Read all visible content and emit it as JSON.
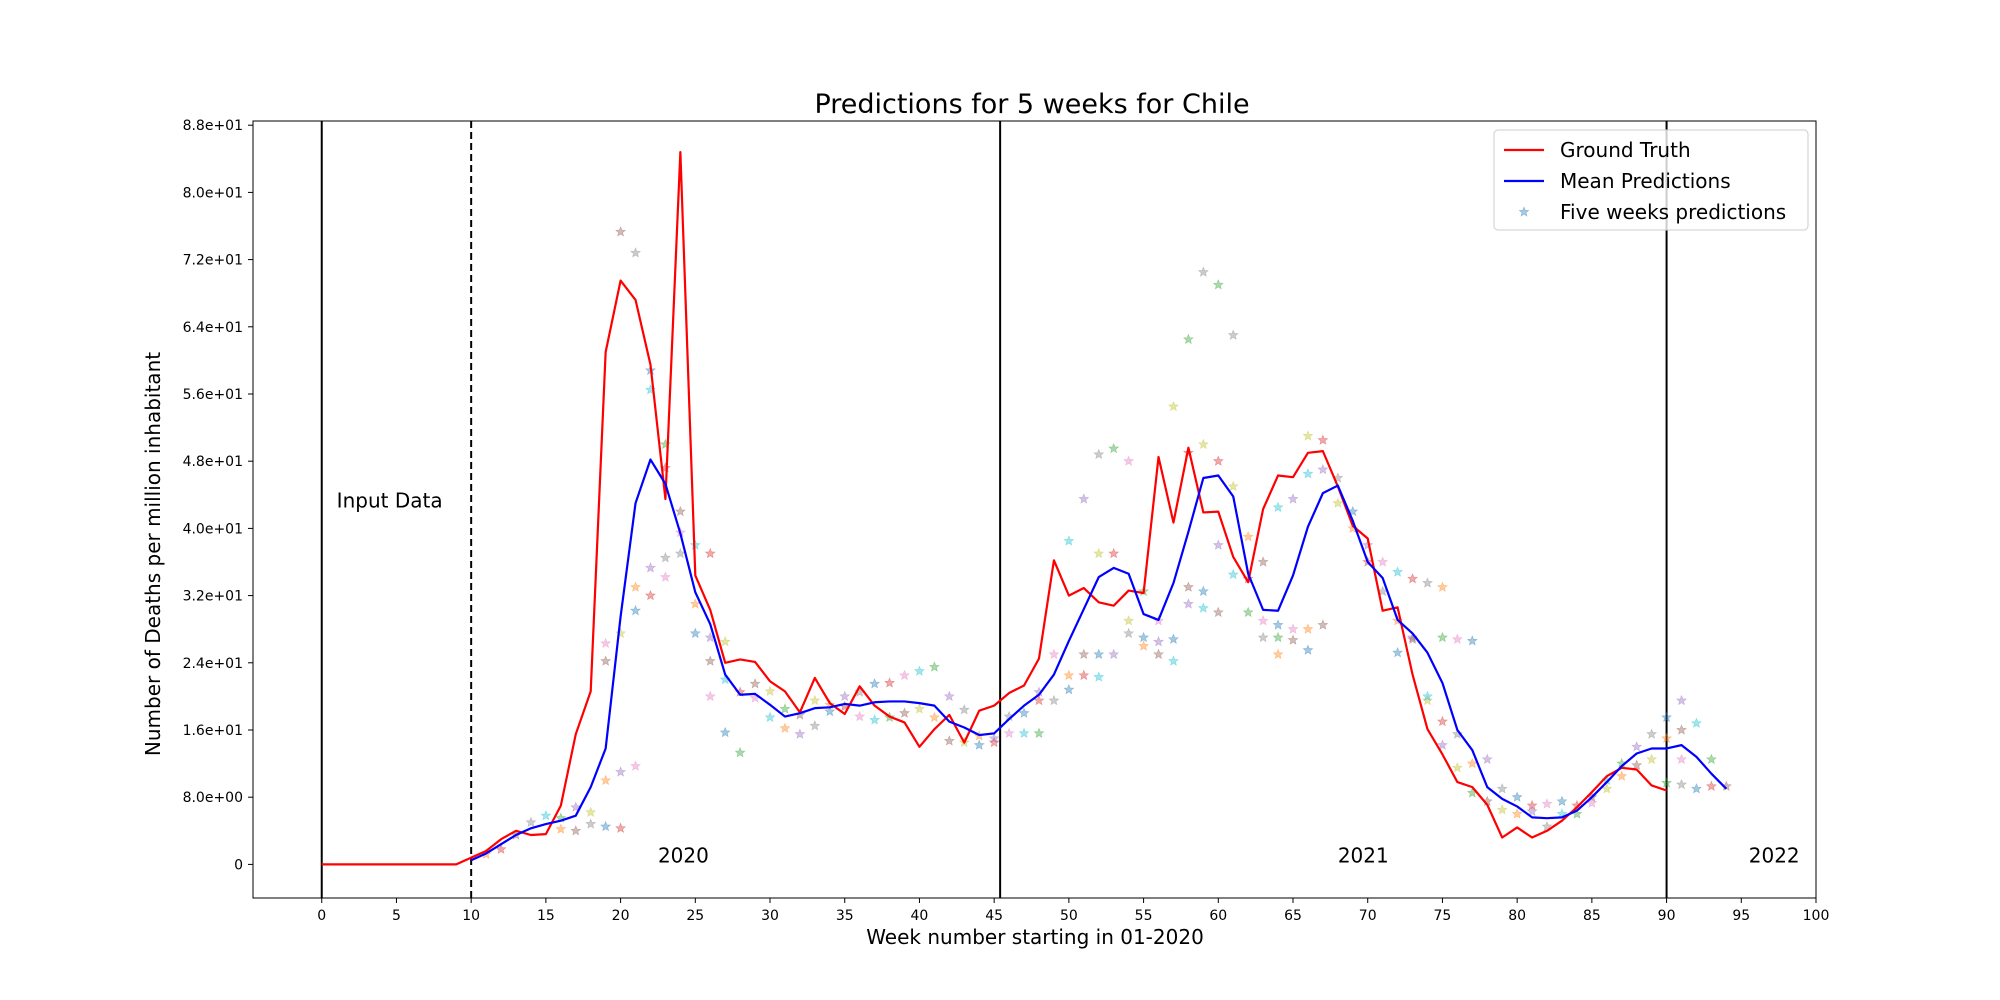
{
  "chart_data": {
    "type": "line",
    "title": "Predictions for 5 weeks for Chile",
    "xlabel": "Week number starting in 01-2020",
    "ylabel": "Number of Deaths per million inhabitant",
    "xlim": [
      -4.6,
      100
    ],
    "ylim": [
      -4.0,
      88.5
    ],
    "x_ticks": [
      0,
      5,
      10,
      15,
      20,
      25,
      30,
      35,
      40,
      45,
      50,
      55,
      60,
      65,
      70,
      75,
      80,
      85,
      90,
      95,
      100
    ],
    "y_ticks": [
      0,
      8,
      16,
      24,
      32,
      40,
      48,
      56,
      64,
      72,
      80,
      88
    ],
    "y_tick_labels": [
      "0",
      "8.0e+00",
      "1.6e+01",
      "2.4e+01",
      "3.2e+01",
      "4.0e+01",
      "4.8e+01",
      "5.6e+01",
      "6.4e+01",
      "7.2e+01",
      "8.0e+01",
      "8.8e+01"
    ],
    "grid": false,
    "legend_position": "top-right",
    "legend": [
      "Ground Truth",
      "Mean Predictions",
      "Five weeks predictions"
    ],
    "vertical_lines": [
      {
        "x": 0,
        "style": "solid"
      },
      {
        "x": 10,
        "style": "dashed"
      },
      {
        "x": 45.4,
        "style": "solid"
      },
      {
        "x": 90,
        "style": "solid"
      }
    ],
    "annotations": [
      {
        "text": "Input Data",
        "x": 1,
        "y": 42.5
      },
      {
        "text": "2020",
        "x": 22.5,
        "y": 0.2
      },
      {
        "text": "2021",
        "x": 68,
        "y": 0.2
      },
      {
        "text": "2022",
        "x": 95.5,
        "y": 0.2
      }
    ],
    "series": [
      {
        "name": "Ground Truth",
        "color": "#ff0000",
        "x": [
          0,
          1,
          2,
          3,
          4,
          5,
          6,
          7,
          8,
          9,
          10,
          11,
          12,
          13,
          14,
          15,
          16,
          17,
          18,
          19,
          20,
          21,
          22,
          23,
          24,
          25,
          26,
          27,
          28,
          29,
          30,
          31,
          32,
          33,
          34,
          35,
          36,
          37,
          38,
          39,
          40,
          41,
          42,
          43,
          44,
          45,
          46,
          47,
          48,
          49,
          50,
          51,
          52,
          53,
          54,
          55,
          56,
          57,
          58,
          59,
          60,
          61,
          62,
          63,
          64,
          65,
          66,
          67,
          68,
          69,
          70,
          71,
          72,
          73,
          74,
          75,
          76,
          77,
          78,
          79,
          80,
          81,
          82,
          83,
          84,
          85,
          86,
          87,
          88,
          89,
          90
        ],
        "values": [
          0,
          0,
          0,
          0,
          0,
          0,
          0,
          0,
          0,
          0,
          0.8,
          1.6,
          3.0,
          4.0,
          3.5,
          3.6,
          7.0,
          15.5,
          20.6,
          61,
          69.5,
          67.2,
          59.5,
          43.5,
          84.8,
          34.4,
          30.3,
          24.0,
          24.4,
          24.1,
          21.8,
          20.6,
          18.1,
          22.2,
          19.2,
          17.9,
          21.2,
          18.9,
          17.6,
          16.9,
          14.0,
          16.1,
          17.8,
          14.5,
          18.3,
          18.9,
          20.4,
          21.3,
          24.5,
          36.2,
          32.0,
          32.9,
          31.2,
          30.8,
          32.6,
          32.3,
          48.5,
          40.7,
          49.6,
          41.9,
          42.0,
          36.6,
          33.6,
          42.3,
          46.3,
          46.1,
          49.0,
          49.2,
          45.0,
          40.3,
          38.8,
          30.2,
          30.6,
          22.6,
          16.1,
          13.1,
          9.8,
          9.2,
          7.1,
          3.2,
          4.4,
          3.2,
          4.0,
          5.2,
          6.8,
          8.6,
          10.5,
          11.5,
          11.3,
          9.4,
          8.8
        ]
      },
      {
        "name": "Mean Predictions",
        "color": "#0000ff",
        "x": [
          10,
          11,
          12,
          13,
          14,
          15,
          16,
          17,
          18,
          19,
          20,
          21,
          22,
          23,
          24,
          25,
          26,
          27,
          28,
          29,
          30,
          31,
          32,
          33,
          34,
          35,
          36,
          37,
          38,
          39,
          40,
          41,
          42,
          43,
          44,
          45,
          46,
          47,
          48,
          49,
          50,
          51,
          52,
          53,
          54,
          55,
          56,
          57,
          58,
          59,
          60,
          61,
          62,
          63,
          64,
          65,
          66,
          67,
          68,
          69,
          70,
          71,
          72,
          73,
          74,
          75,
          76,
          77,
          78,
          79,
          80,
          81,
          82,
          83,
          84,
          85,
          86,
          87,
          88,
          89,
          90,
          91,
          92,
          93,
          94
        ],
        "values": [
          0.5,
          1.3,
          2.4,
          3.5,
          4.3,
          4.8,
          5.2,
          5.8,
          9.2,
          13.8,
          29.5,
          43.0,
          48.2,
          45.3,
          39.4,
          32.4,
          28.6,
          22.6,
          20.2,
          20.3,
          19.0,
          17.6,
          18.0,
          18.6,
          18.7,
          19.1,
          18.9,
          19.3,
          19.4,
          19.4,
          19.2,
          18.9,
          17.0,
          16.3,
          15.4,
          15.6,
          17.3,
          18.9,
          20.2,
          22.6,
          26.6,
          30.4,
          34.2,
          35.3,
          34.6,
          29.8,
          29.1,
          33.5,
          39.6,
          46.0,
          46.3,
          43.8,
          34.6,
          30.3,
          30.2,
          34.4,
          40.2,
          44.2,
          45.1,
          40.9,
          36.0,
          34.1,
          29.1,
          27.5,
          25.2,
          21.6,
          16.0,
          13.6,
          9.2,
          7.8,
          6.9,
          5.6,
          5.5,
          5.6,
          6.4,
          8.0,
          9.8,
          11.7,
          13.2,
          13.8,
          13.8,
          14.2,
          12.8,
          10.8,
          9.0
        ]
      }
    ],
    "scatter_series": {
      "name": "Five weeks predictions",
      "marker": "star",
      "alpha": 0.4,
      "colors": [
        "#1f77b4",
        "#ff7f0e",
        "#2ca02c",
        "#d62728",
        "#9467bd",
        "#8c564b",
        "#e377c2",
        "#7f7f7f",
        "#bcbd22",
        "#17becf"
      ],
      "points": [
        [
          11,
          1.2
        ],
        [
          12,
          1.8
        ],
        [
          13,
          3.5
        ],
        [
          14,
          5.0
        ],
        [
          15,
          5.8
        ],
        [
          16,
          4.2
        ],
        [
          16,
          5.5
        ],
        [
          17,
          6.8
        ],
        [
          17,
          4.0
        ],
        [
          18,
          4.8
        ],
        [
          18,
          6.2
        ],
        [
          19,
          4.5
        ],
        [
          19,
          10.0
        ],
        [
          20,
          4.3
        ],
        [
          20,
          11.0
        ],
        [
          21,
          11.7
        ],
        [
          19,
          24.2
        ],
        [
          19,
          26.3
        ],
        [
          20,
          27.5
        ],
        [
          21,
          30.2
        ],
        [
          21,
          33.0
        ],
        [
          22,
          32.0
        ],
        [
          22,
          35.3
        ],
        [
          23,
          34.2
        ],
        [
          23,
          36.5
        ],
        [
          20,
          75.3
        ],
        [
          21,
          72.8
        ],
        [
          22,
          56.5
        ],
        [
          22,
          58.8
        ],
        [
          23,
          50.0
        ],
        [
          23,
          47.2
        ],
        [
          24,
          42.0
        ],
        [
          24,
          39.5
        ],
        [
          24,
          37.0
        ],
        [
          25,
          38.0
        ],
        [
          25,
          27.5
        ],
        [
          25,
          31.0
        ],
        [
          26,
          37.0
        ],
        [
          26,
          27.0
        ],
        [
          26,
          24.2
        ],
        [
          26,
          20.0
        ],
        [
          27,
          26.5
        ],
        [
          27,
          22.0
        ],
        [
          27,
          15.7
        ],
        [
          28,
          13.3
        ],
        [
          28,
          20.5
        ],
        [
          29,
          21.5
        ],
        [
          29,
          19.8
        ],
        [
          30,
          20.6
        ],
        [
          30,
          17.5
        ],
        [
          31,
          16.2
        ],
        [
          31,
          18.5
        ],
        [
          32,
          15.5
        ],
        [
          32,
          17.8
        ],
        [
          33,
          16.5
        ],
        [
          33,
          19.5
        ],
        [
          34,
          18.2
        ],
        [
          34,
          19.0
        ],
        [
          35,
          18.8
        ],
        [
          35,
          20.0
        ],
        [
          36,
          17.6
        ],
        [
          36,
          20.5
        ],
        [
          37,
          17.2
        ],
        [
          37,
          21.5
        ],
        [
          38,
          17.5
        ],
        [
          38,
          21.6
        ],
        [
          39,
          18.0
        ],
        [
          39,
          22.5
        ],
        [
          40,
          18.5
        ],
        [
          40,
          23.0
        ],
        [
          41,
          17.5
        ],
        [
          41,
          23.5
        ],
        [
          42,
          20.0
        ],
        [
          42,
          14.7
        ],
        [
          43,
          18.4
        ],
        [
          43,
          14.5
        ],
        [
          44,
          14.2
        ],
        [
          44,
          15.3
        ],
        [
          45,
          14.5
        ],
        [
          45,
          15.0
        ],
        [
          46,
          15.6
        ],
        [
          46,
          17.6
        ],
        [
          47,
          15.6
        ],
        [
          47,
          18.0
        ],
        [
          48,
          15.6
        ],
        [
          48,
          19.5
        ],
        [
          48,
          20.5
        ],
        [
          49,
          25.0
        ],
        [
          49,
          19.5
        ],
        [
          50,
          38.5
        ],
        [
          50,
          20.8
        ],
        [
          50,
          22.5
        ],
        [
          51,
          22.5
        ],
        [
          51,
          43.5
        ],
        [
          51,
          25.0
        ],
        [
          52,
          48.8
        ],
        [
          52,
          37.0
        ],
        [
          52,
          22.3
        ],
        [
          52,
          25.0
        ],
        [
          53,
          49.5
        ],
        [
          53,
          37.0
        ],
        [
          53,
          25.0
        ],
        [
          54,
          48.0
        ],
        [
          54,
          27.5
        ],
        [
          54,
          29.0
        ],
        [
          55,
          27.0
        ],
        [
          55,
          26.0
        ],
        [
          55,
          32.5
        ],
        [
          56,
          26.5
        ],
        [
          56,
          25.0
        ],
        [
          56,
          29.0
        ],
        [
          57,
          54.5
        ],
        [
          57,
          24.2
        ],
        [
          57,
          26.8
        ],
        [
          58,
          62.5
        ],
        [
          58,
          49.0
        ],
        [
          58,
          31.0
        ],
        [
          58,
          33.0
        ],
        [
          59,
          70.5
        ],
        [
          59,
          50.0
        ],
        [
          59,
          30.5
        ],
        [
          59,
          32.5
        ],
        [
          60,
          69.0
        ],
        [
          60,
          48.0
        ],
        [
          60,
          38.0
        ],
        [
          60,
          30.0
        ],
        [
          61,
          63.0
        ],
        [
          61,
          45.0
        ],
        [
          61,
          34.5
        ],
        [
          62,
          39.0
        ],
        [
          62,
          30.0
        ],
        [
          62,
          34.0
        ],
        [
          63,
          36.0
        ],
        [
          63,
          29.0
        ],
        [
          63,
          27.0
        ],
        [
          64,
          42.5
        ],
        [
          64,
          28.5
        ],
        [
          64,
          25.0
        ],
        [
          64,
          27.0
        ],
        [
          65,
          43.5
        ],
        [
          65,
          26.7
        ],
        [
          65,
          28.0
        ],
        [
          66,
          51.0
        ],
        [
          66,
          46.5
        ],
        [
          66,
          25.5
        ],
        [
          66,
          28.0
        ],
        [
          67,
          50.5
        ],
        [
          67,
          47.0
        ],
        [
          67,
          28.5
        ],
        [
          68,
          46.0
        ],
        [
          68,
          43.0
        ],
        [
          69,
          42.0
        ],
        [
          69,
          40.0
        ],
        [
          70,
          36.0
        ],
        [
          70,
          38.0
        ],
        [
          71,
          36.0
        ],
        [
          71,
          32.5
        ],
        [
          72,
          34.8
        ],
        [
          72,
          25.2
        ],
        [
          72,
          29.0
        ],
        [
          73,
          34.0
        ],
        [
          73,
          27.0
        ],
        [
          73,
          26.8
        ],
        [
          74,
          33.5
        ],
        [
          74,
          19.5
        ],
        [
          74,
          20.0
        ],
        [
          75,
          33.0
        ],
        [
          75,
          27.0
        ],
        [
          75,
          17.0
        ],
        [
          75,
          14.2
        ],
        [
          76,
          26.8
        ],
        [
          76,
          15.5
        ],
        [
          76,
          11.5
        ],
        [
          77,
          26.6
        ],
        [
          77,
          12.0
        ],
        [
          77,
          8.5
        ],
        [
          78,
          12.5
        ],
        [
          78,
          7.5
        ],
        [
          79,
          9.0
        ],
        [
          79,
          6.5
        ],
        [
          80,
          8.0
        ],
        [
          80,
          6.0
        ],
        [
          81,
          7.0
        ],
        [
          81,
          6.3
        ],
        [
          82,
          7.2
        ],
        [
          82,
          4.5
        ],
        [
          83,
          6.0
        ],
        [
          83,
          7.5
        ],
        [
          84,
          6.0
        ],
        [
          84,
          7.0
        ],
        [
          85,
          8.0
        ],
        [
          85,
          7.3
        ],
        [
          86,
          9.0
        ],
        [
          86,
          10.0
        ],
        [
          87,
          10.5
        ],
        [
          87,
          12.0
        ],
        [
          88,
          14.0
        ],
        [
          88,
          11.8
        ],
        [
          89,
          15.5
        ],
        [
          89,
          12.5
        ],
        [
          90,
          17.5
        ],
        [
          90,
          15.0
        ],
        [
          90,
          9.7
        ],
        [
          91,
          19.5
        ],
        [
          91,
          16.0
        ],
        [
          91,
          12.5
        ],
        [
          91,
          9.5
        ],
        [
          92,
          16.8
        ],
        [
          92,
          9.0
        ],
        [
          93,
          12.5
        ],
        [
          93,
          9.3
        ],
        [
          94,
          9.3
        ]
      ]
    }
  }
}
